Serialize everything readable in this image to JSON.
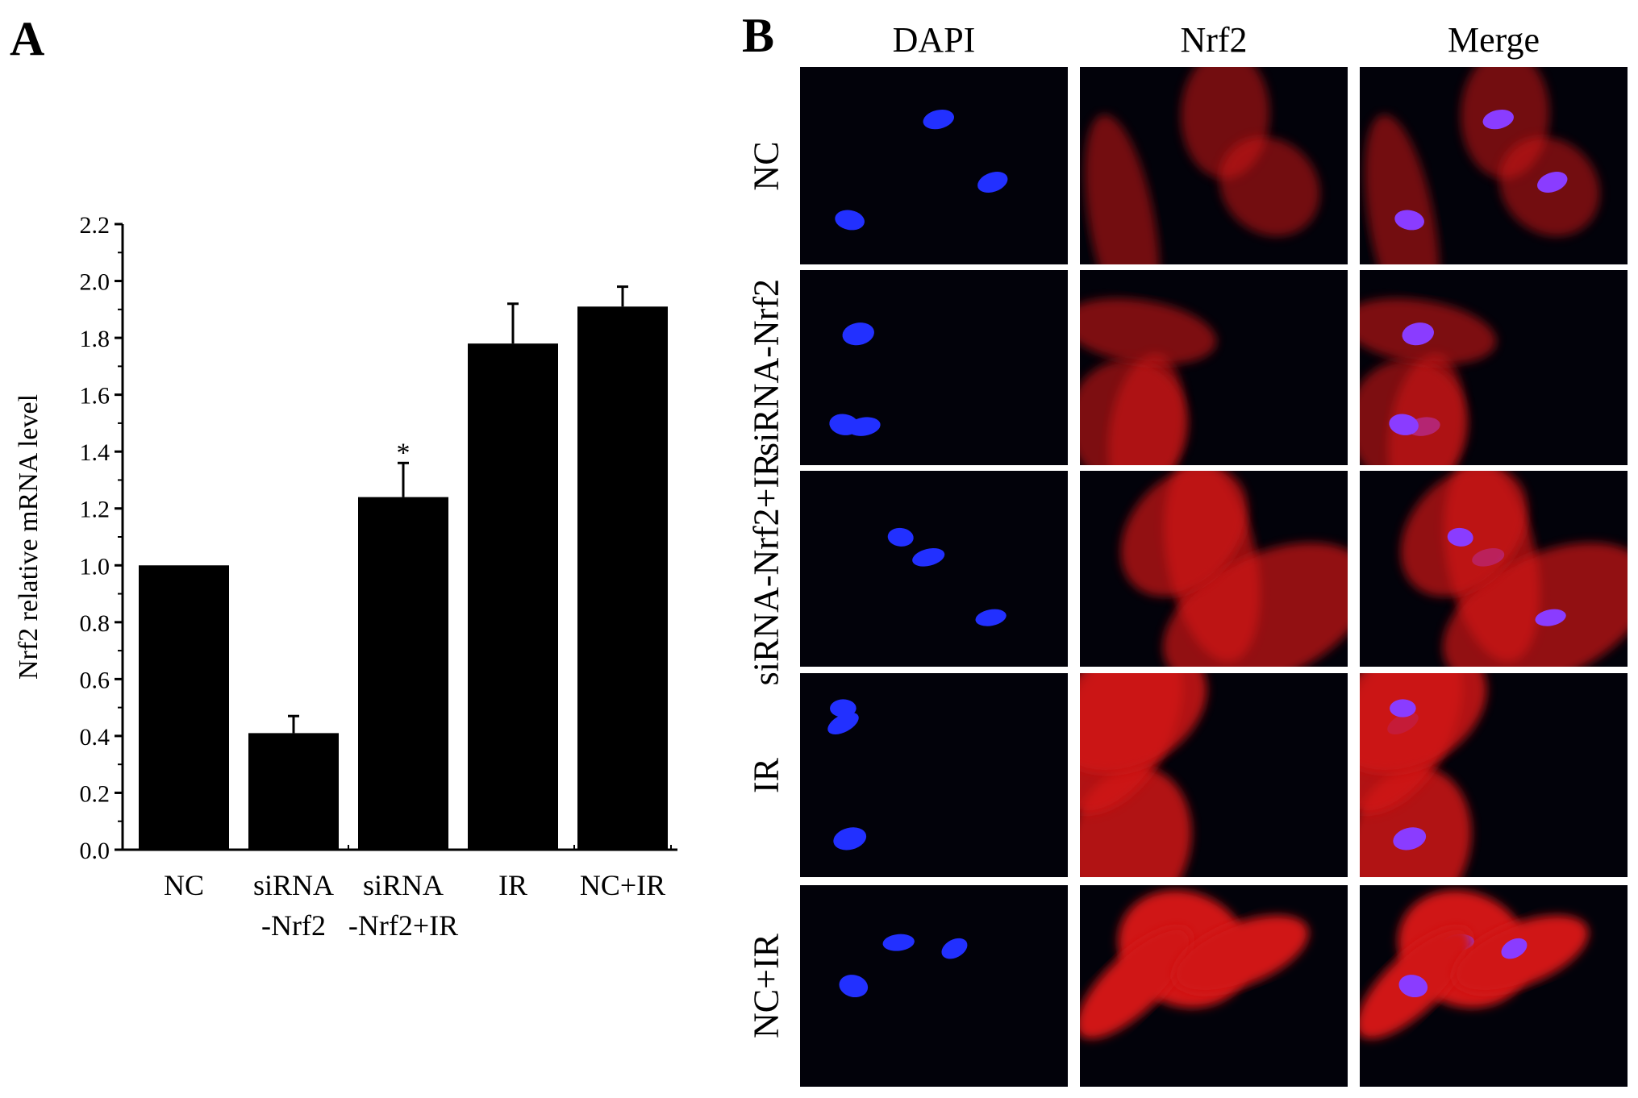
{
  "panel_a_label": "A",
  "panel_b_label": "B",
  "chart_data": {
    "type": "bar",
    "categories": [
      [
        "NC"
      ],
      [
        "siRNA",
        "-Nrf2"
      ],
      [
        "siRNA",
        "-Nrf2+IR"
      ],
      [
        "IR"
      ],
      [
        "NC+IR"
      ]
    ],
    "values": [
      1.0,
      0.41,
      1.24,
      1.78,
      1.91
    ],
    "errors": [
      0.0,
      0.06,
      0.12,
      0.14,
      0.07
    ],
    "significance": [
      "",
      "",
      "*",
      "",
      ""
    ],
    "ylabel": "Nrf2  relative mRNA  level",
    "xlabel": "",
    "ylim": [
      0.0,
      2.2
    ],
    "yticks": [
      "0.0",
      "0.2",
      "0.4",
      "0.6",
      "0.8",
      "1.0",
      "1.2",
      "1.4",
      "1.6",
      "1.8",
      "2.0",
      "2.2"
    ],
    "bar_color": "#000000",
    "grid": false
  },
  "microscopy": {
    "columns": [
      "DAPI",
      "Nrf2",
      "Merge"
    ],
    "rows": [
      "NC",
      "siRNA-Nrf2",
      "siRNA-Nrf2+IR",
      "IR",
      "NC+IR"
    ],
    "colors": {
      "nucleus": "#2230ff",
      "cytoplasm": "#d01818",
      "merge_nucleus": "#8a3cff",
      "background": "#02020a"
    }
  }
}
